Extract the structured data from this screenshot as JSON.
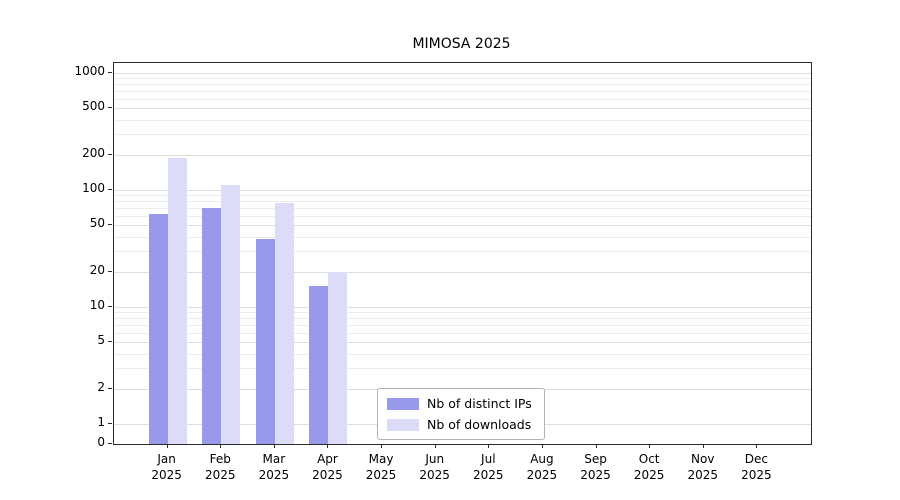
{
  "chart_data": {
    "type": "bar",
    "title": "MIMOSA 2025",
    "categories": [
      "Jan",
      "Feb",
      "Mar",
      "Apr",
      "May",
      "Jun",
      "Jul",
      "Aug",
      "Sep",
      "Oct",
      "Nov",
      "Dec"
    ],
    "year_label": "2025",
    "series": [
      {
        "name": "Nb of distinct IPs",
        "color": "#9999ec",
        "values": [
          62,
          70,
          38,
          15,
          0,
          0,
          0,
          0,
          0,
          0,
          0,
          0
        ]
      },
      {
        "name": "Nb of downloads",
        "color": "#dcdcf8",
        "values": [
          188,
          110,
          78,
          20,
          0,
          0,
          0,
          0,
          0,
          0,
          0,
          0
        ]
      }
    ],
    "y_ticks": [
      0,
      1,
      2,
      5,
      10,
      20,
      50,
      100,
      200,
      500,
      1000
    ],
    "y_scale": "symlog",
    "ylim": [
      0,
      1200
    ],
    "grid": "horizontal",
    "legend_position": "bottom-center",
    "colors": {
      "grid_major": "#dedede",
      "grid_minor": "#ececec",
      "axis": "#2a2a2a"
    }
  }
}
